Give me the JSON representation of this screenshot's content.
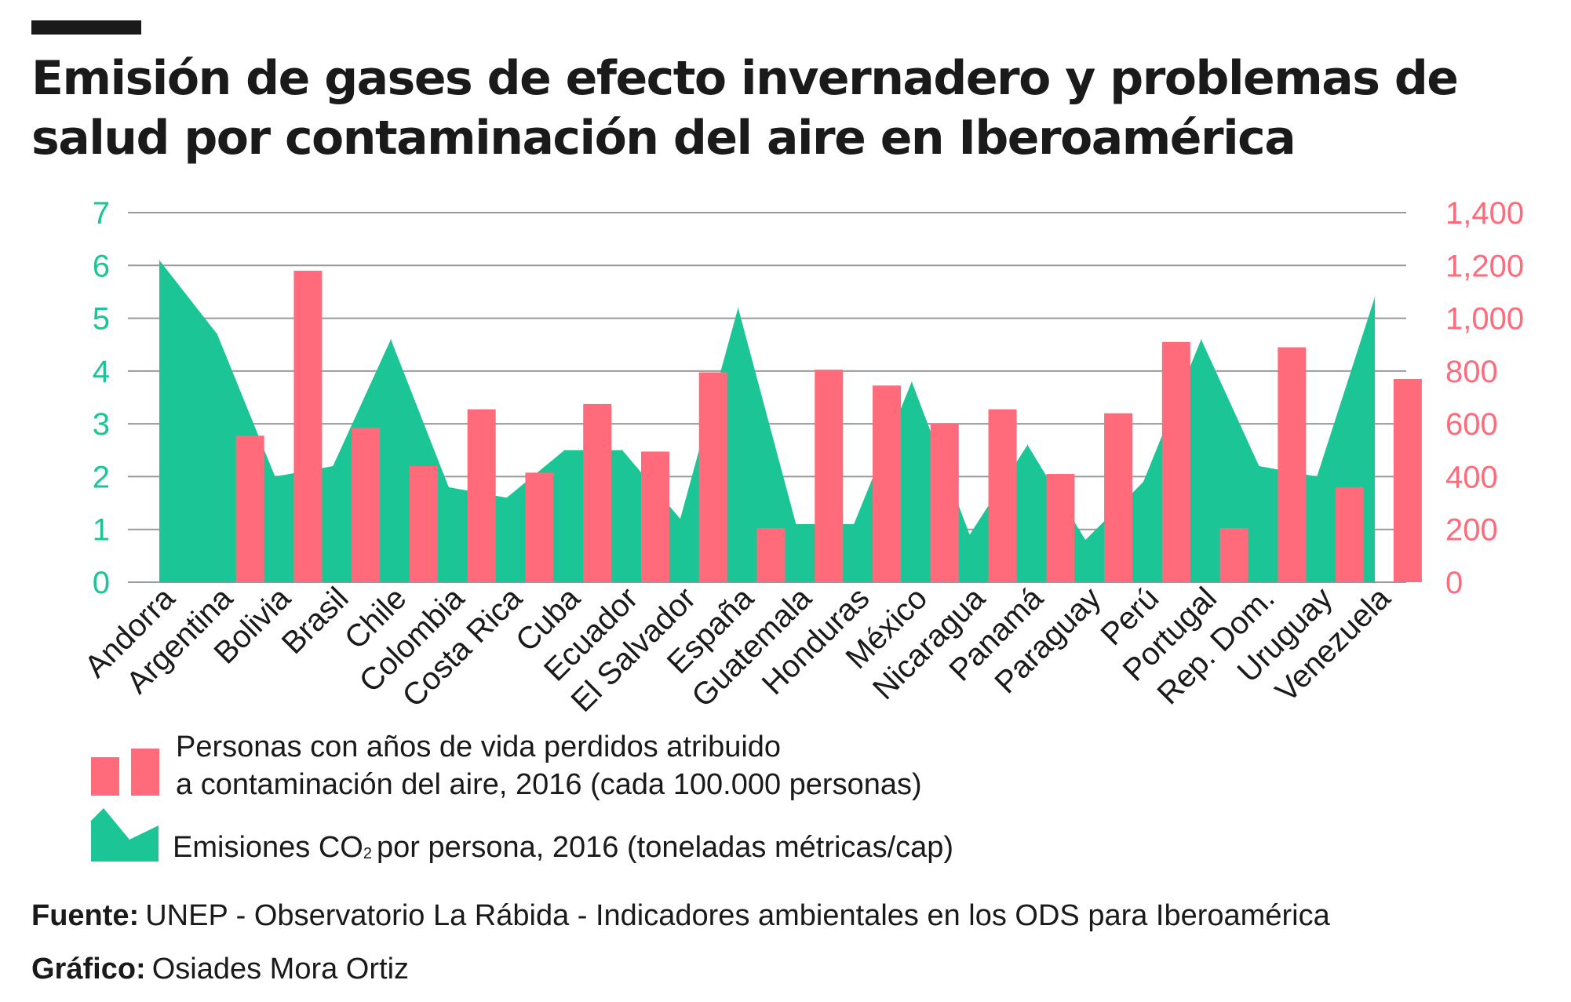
{
  "title_lines": [
    "Emisión de gases de efecto invernadero y problemas de",
    "salud por contaminación del aire en Iberoamérica"
  ],
  "colors": {
    "bars": "#ff6b7a",
    "area": "#1cc596",
    "grid": "#9a9a9a",
    "text": "#1a1a1a"
  },
  "legend": {
    "bars_line1": "Personas con años de vida perdidos atribuido",
    "bars_line2": "a contaminación del aire, 2016 (cada 100.000 personas)",
    "area_prefix": "Emisiones CO",
    "area_sub": "2",
    "area_suffix": "por persona, 2016 (toneladas métricas/cap)"
  },
  "footer": {
    "source_label": "Fuente:",
    "source_text": "UNEP -  Observatorio La Rábida - Indicadores ambientales en los ODS para Iberoamérica",
    "credit_label": "Gráfico:",
    "credit_text": "Osiades Mora Ortiz"
  },
  "chart_data": {
    "type": "bar",
    "combined_with": "area",
    "categories": [
      "Andorra",
      "Argentina",
      "Bolivia",
      "Brasil",
      "Chile",
      "Colombia",
      "Costa Rica",
      "Cuba",
      "Ecuador",
      "El Salvador",
      "España",
      "Guatemala",
      "Honduras",
      "México",
      "Nicaragua",
      "Panamá",
      "Paraguay",
      "Perú",
      "Portugal",
      "Rep. Dom.",
      "Uruguay",
      "Venezuela"
    ],
    "series": [
      {
        "name": "Emisiones CO2 por persona, 2016 (toneladas métricas/cap)",
        "type": "area",
        "axis": "left",
        "values": [
          6.1,
          4.7,
          2.0,
          2.2,
          4.6,
          1.8,
          1.6,
          2.5,
          2.5,
          1.2,
          5.2,
          1.1,
          1.1,
          3.8,
          0.9,
          2.6,
          0.8,
          1.9,
          4.6,
          2.2,
          2.0,
          5.4
        ]
      },
      {
        "name": "Personas con años de vida perdidos atribuido a contaminación del aire, 2016 (cada 100.000 personas)",
        "type": "bar",
        "axis": "right",
        "values": [
          null,
          555,
          1180,
          585,
          440,
          655,
          415,
          675,
          495,
          795,
          205,
          805,
          745,
          600,
          655,
          410,
          640,
          910,
          205,
          890,
          360,
          770
        ]
      }
    ],
    "y_left": {
      "ylim": [
        0,
        7
      ],
      "ticks": [
        "0",
        "1",
        "2",
        "3",
        "4",
        "5",
        "6",
        "7"
      ]
    },
    "y_right": {
      "ylim": [
        0,
        1400
      ],
      "ticks": [
        "0",
        "200",
        "400",
        "600",
        "800",
        "1,000",
        "1,200",
        "1,400"
      ]
    },
    "grid": true,
    "legend_position": "bottom-left"
  }
}
